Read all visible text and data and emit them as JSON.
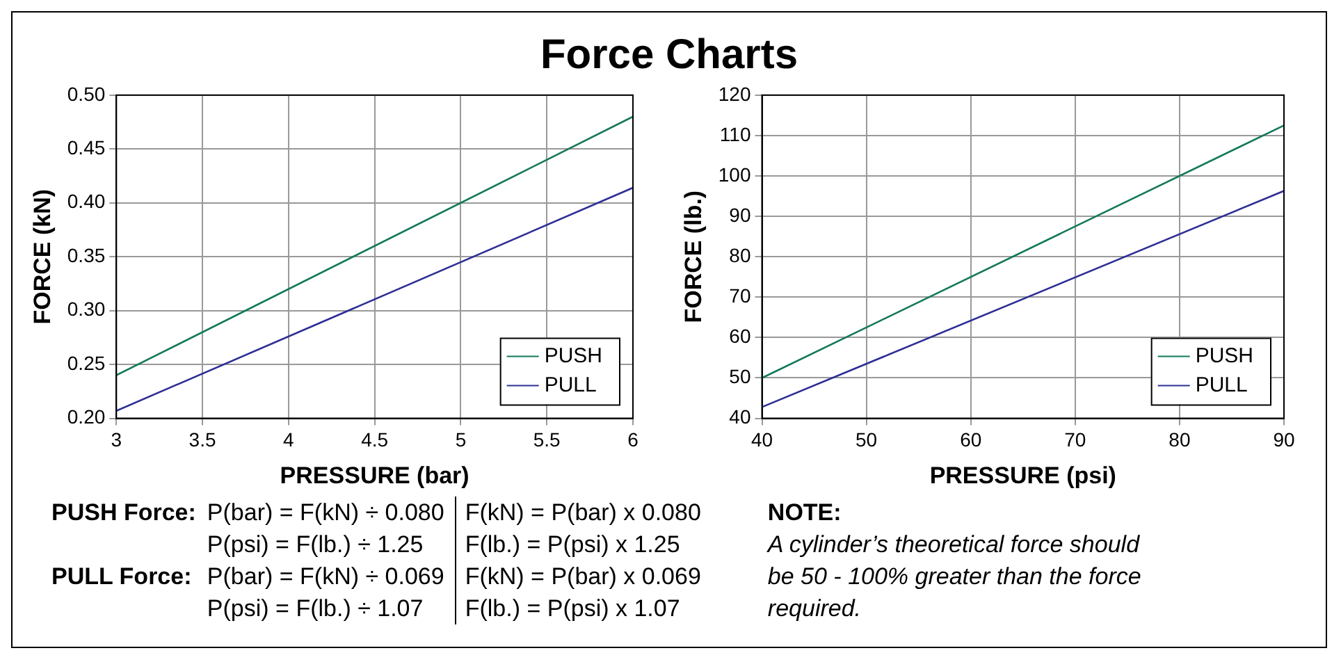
{
  "chart_data": [
    {
      "type": "line",
      "title": "Force Charts",
      "xlabel": "PRESSURE (bar)",
      "ylabel": "FORCE (kN)",
      "xlim": [
        3,
        6
      ],
      "ylim": [
        0.2,
        0.5
      ],
      "xticks": [
        3,
        3.5,
        4,
        4.5,
        5,
        5.5,
        6
      ],
      "yticks": [
        {
          "value": 0.2,
          "label": "0.20"
        },
        {
          "value": 0.25,
          "label": "0.25"
        },
        {
          "value": 0.3,
          "label": "0.30"
        },
        {
          "value": 0.35,
          "label": "0.35"
        },
        {
          "value": 0.4,
          "label": "0.40"
        },
        {
          "value": 0.45,
          "label": "0.45"
        },
        {
          "value": 0.5,
          "label": "0.50"
        }
      ],
      "grid": true,
      "legend": "bottom right",
      "marker": "none",
      "line_style": "solid",
      "x": [
        3,
        6
      ],
      "series": [
        {
          "name": "PUSH",
          "color": "#13785a",
          "values": [
            0.24,
            0.48
          ]
        },
        {
          "name": "PULL",
          "color": "#2e2e96",
          "values": [
            0.207,
            0.414
          ]
        }
      ]
    },
    {
      "type": "line",
      "xlabel": "PRESSURE (psi)",
      "ylabel": "FORCE (lb.)",
      "xlim": [
        40,
        90
      ],
      "ylim": [
        40,
        120
      ],
      "xticks": [
        40,
        50,
        60,
        70,
        80,
        90
      ],
      "yticks": [
        40,
        50,
        60,
        70,
        80,
        90,
        100,
        110,
        120
      ],
      "grid": true,
      "legend": "bottom right",
      "marker": "none",
      "line_style": "solid",
      "x": [
        40,
        90
      ],
      "series": [
        {
          "name": "PUSH",
          "color": "#13785a",
          "values": [
            50,
            112.5
          ]
        },
        {
          "name": "PULL",
          "color": "#2e2e96",
          "values": [
            42.8,
            96.3
          ]
        }
      ]
    },
    {
      "type": "other",
      "annotations": [
        "PUSH Force:",
        "P(bar) = F(kN) ÷ 0.080",
        "F(kN) = P(bar) x 0.080",
        "P(psi) = F(lb.) ÷ 1.25",
        "F(lb.) = P(psi) x 1.25",
        "PULL Force:",
        "P(bar) = F(kN) ÷ 0.069",
        "F(kN) = P(bar) x 0.069",
        "P(psi) = F(lb.) ÷ 1.07",
        "F(lb.) = P(psi) x 1.07",
        "NOTE:",
        "A cylinder’s theoretical force should be 50 - 100% greater than the force required."
      ]
    }
  ]
}
